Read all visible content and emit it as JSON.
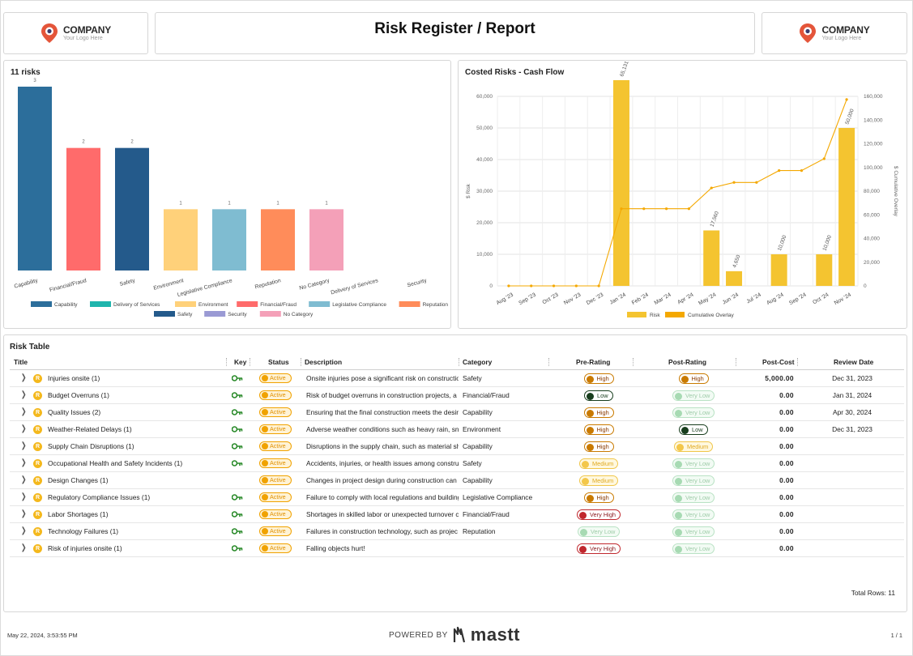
{
  "header": {
    "title": "Risk Register / Report",
    "logo_left": {
      "name": "COMPANY",
      "tagline": "Your Logo Here"
    },
    "logo_right": {
      "name": "COMPANY",
      "tagline": "Your Logo Here"
    }
  },
  "colors": {
    "capability": "#2c6e9b",
    "financial": "#ff6b6b",
    "safety": "#245a8b",
    "environment": "#ffd17a",
    "legislative": "#7fbcd1",
    "reputation": "#ff8c5a",
    "no_category": "#f4a0b8",
    "delivery": "#1fb5ad",
    "security": "#9a9ad4",
    "risk_bar": "#f4c430",
    "cumulative": "#f4a800",
    "status_active": "#f0a200",
    "logo_pin": "#e4553a"
  },
  "category_chart": {
    "title": "11 risks",
    "chart_data": {
      "type": "bar",
      "categories": [
        "Capability",
        "Financial/Fraud",
        "Safety",
        "Environment",
        "Legislative Compliance",
        "Reputation",
        "No Category",
        "Delivery of Services",
        "Security"
      ],
      "values": [
        3,
        2,
        2,
        1,
        1,
        1,
        1,
        0,
        0
      ],
      "legend": [
        "Capability",
        "Delivery of Services",
        "Environment",
        "Financial/Fraud",
        "Legislative Compliance",
        "Reputation",
        "Safety",
        "Security",
        "No Category"
      ],
      "legend_position": "bottom",
      "ylim": [
        0,
        3
      ]
    }
  },
  "cashflow_chart": {
    "title": "Costed Risks - Cash Flow",
    "chart_data": {
      "type": "bar",
      "categories": [
        "Aug '23",
        "Sep '23",
        "Oct '23",
        "Nov '23",
        "Dec '23",
        "Jan '24",
        "Feb '24",
        "Mar '24",
        "Apr '24",
        "May '24",
        "Jun '24",
        "Jul '24",
        "Aug '24",
        "Sep '24",
        "Oct '24",
        "Nov '24"
      ],
      "series": [
        {
          "name": "Risk",
          "type": "bar",
          "values": [
            0,
            0,
            0,
            0,
            0,
            65131,
            0,
            0,
            0,
            17560,
            4650,
            0,
            10000,
            0,
            10000,
            50000
          ]
        },
        {
          "name": "Cumulative Overlay",
          "type": "line",
          "axis": "right",
          "values": [
            0,
            0,
            0,
            0,
            0,
            65131,
            65131,
            65131,
            65131,
            82691,
            87341,
            87341,
            97341,
            97341,
            107341,
            157341
          ]
        }
      ],
      "bar_labels": [
        "",
        "",
        "",
        "",
        "",
        "65,131",
        "",
        "",
        "",
        "17,560",
        "4,650",
        "",
        "10,000",
        "",
        "10,000",
        "50,000"
      ],
      "ylabel": "$ Risk",
      "y2label": "$ Cumulative Overlay",
      "ylim": [
        0,
        60000
      ],
      "y2lim": [
        0,
        160000
      ],
      "yticks": [
        "0",
        "10,000",
        "20,000",
        "30,000",
        "40,000",
        "50,000",
        "60,000"
      ],
      "y2ticks": [
        "0",
        "20,000",
        "40,000",
        "60,000",
        "80,000",
        "100,000",
        "120,000",
        "140,000",
        "160,000"
      ],
      "grid": true,
      "legend_position": "bottom"
    }
  },
  "risk_table": {
    "title": "Risk Table",
    "columns": {
      "title": "Title",
      "key": "Key",
      "status": "Status",
      "description": "Description",
      "category": "Category",
      "pre_rating": "Pre-Rating",
      "post_rating": "Post-Rating",
      "post_cost": "Post-Cost",
      "review_date": "Review Date"
    },
    "rows": [
      {
        "title": "Injuries onsite  (1)",
        "key": true,
        "status": "Active",
        "description": "Onsite injuries pose a significant risk on construction",
        "category": "Safety",
        "pre": "High",
        "pre_level": "high",
        "post": "High",
        "post_level": "high",
        "cost": "5,000.00",
        "date": "Dec 31, 2023"
      },
      {
        "title": "Budget Overruns  (1)",
        "key": true,
        "status": "Active",
        "description": "Risk of budget overruns in construction projects, a",
        "category": "Financial/Fraud",
        "pre": "Low",
        "pre_level": "low",
        "post": "Very Low",
        "post_level": "vlow",
        "cost": "0.00",
        "date": "Jan 31, 2024"
      },
      {
        "title": "Quality Issues  (2)",
        "key": true,
        "status": "Active",
        "description": "Ensuring that the final construction meets the desired",
        "category": "Capability",
        "pre": "High",
        "pre_level": "high",
        "post": "Very Low",
        "post_level": "vlow",
        "cost": "0.00",
        "date": "Apr 30, 2024"
      },
      {
        "title": "Weather-Related Delays  (1)",
        "key": true,
        "status": "Active",
        "description": "Adverse weather conditions such as heavy rain, snow",
        "category": "Environment",
        "pre": "High",
        "pre_level": "high",
        "post": "Low",
        "post_level": "low",
        "cost": "0.00",
        "date": "Dec 31, 2023"
      },
      {
        "title": "Supply Chain Disruptions  (1)",
        "key": true,
        "status": "Active",
        "description": "Disruptions in the supply chain, such as material sh",
        "category": "Capability",
        "pre": "High",
        "pre_level": "high",
        "post": "Medium",
        "post_level": "medium",
        "cost": "0.00",
        "date": ""
      },
      {
        "title": "Occupational Health and Safety Incidents  (1)",
        "key": true,
        "status": "Active",
        "description": "Accidents, injuries, or health issues among constru",
        "category": "Safety",
        "pre": "Medium",
        "pre_level": "medium",
        "post": "Very Low",
        "post_level": "vlow",
        "cost": "0.00",
        "date": ""
      },
      {
        "title": "Design Changes  (1)",
        "key": false,
        "status": "Active",
        "description": "Changes in project design during construction can",
        "category": "Capability",
        "pre": "Medium",
        "pre_level": "medium",
        "post": "Very Low",
        "post_level": "vlow",
        "cost": "0.00",
        "date": ""
      },
      {
        "title": "Regulatory Compliance Issues  (1)",
        "key": true,
        "status": "Active",
        "description": "Failure to comply with local regulations and building",
        "category": "Legislative Compliance",
        "pre": "High",
        "pre_level": "high",
        "post": "Very Low",
        "post_level": "vlow",
        "cost": "0.00",
        "date": ""
      },
      {
        "title": "Labor Shortages  (1)",
        "key": true,
        "status": "Active",
        "description": "Shortages in skilled labor or unexpected turnover c",
        "category": "Financial/Fraud",
        "pre": "Very High",
        "pre_level": "vhigh",
        "post": "Very Low",
        "post_level": "vlow",
        "cost": "0.00",
        "date": ""
      },
      {
        "title": "Technology Failures  (1)",
        "key": true,
        "status": "Active",
        "description": "Failures in construction technology, such as projec",
        "category": "Reputation",
        "pre": "Very Low",
        "pre_level": "vlow",
        "post": "Very Low",
        "post_level": "vlow",
        "cost": "0.00",
        "date": ""
      },
      {
        "title": "Risk of injuries onsite  (1)",
        "key": true,
        "status": "Active",
        "description": "Falling objects hurt!",
        "category": "",
        "pre": "Very High",
        "pre_level": "vhigh",
        "post": "Very Low",
        "post_level": "vlow",
        "cost": "0.00",
        "date": ""
      }
    ],
    "total_rows_label": "Total Rows: 11"
  },
  "footer": {
    "timestamp": "May 22, 2024, 3:53:55 PM",
    "powered_by": "POWERED BY",
    "brand": "mastt",
    "page": "1 / 1"
  }
}
